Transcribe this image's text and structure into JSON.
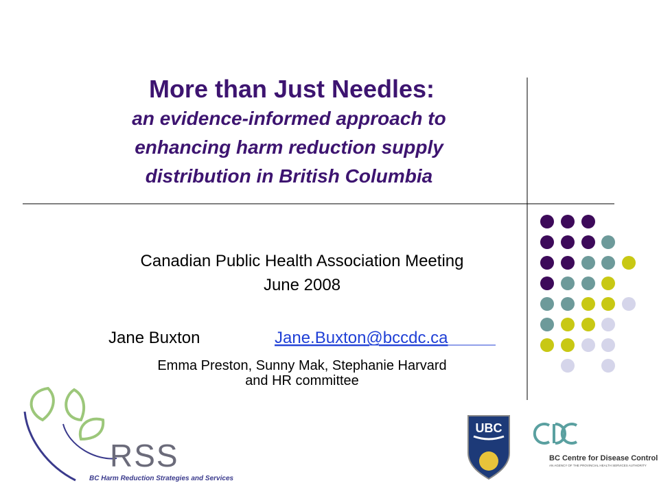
{
  "slide": {
    "title": "More than Just Needles:",
    "subtitle_lines": [
      "an evidence-informed approach to",
      "enhancing harm reduction supply",
      "distribution in British Columbia"
    ],
    "meeting": "Canadian Public Health Association Meeting",
    "date": "June 2008",
    "presenter": "Jane Buxton",
    "email": "Jane.Buxton@bccdc.ca",
    "coauthors_lines": [
      "Emma Preston, Sunny Mak, Stephanie Harvard",
      "and HR committee"
    ],
    "logos": {
      "rss": {
        "name": "RSS",
        "caption": "BC Harm Reduction Strategies and Services"
      },
      "ubc": {
        "name": "UBC"
      },
      "bccdc": {
        "name": "BC Centre for Disease Control",
        "tagline": "AN AGENCY OF THE PROVINCIAL HEALTH SERVICES AUTHORITY"
      }
    }
  }
}
